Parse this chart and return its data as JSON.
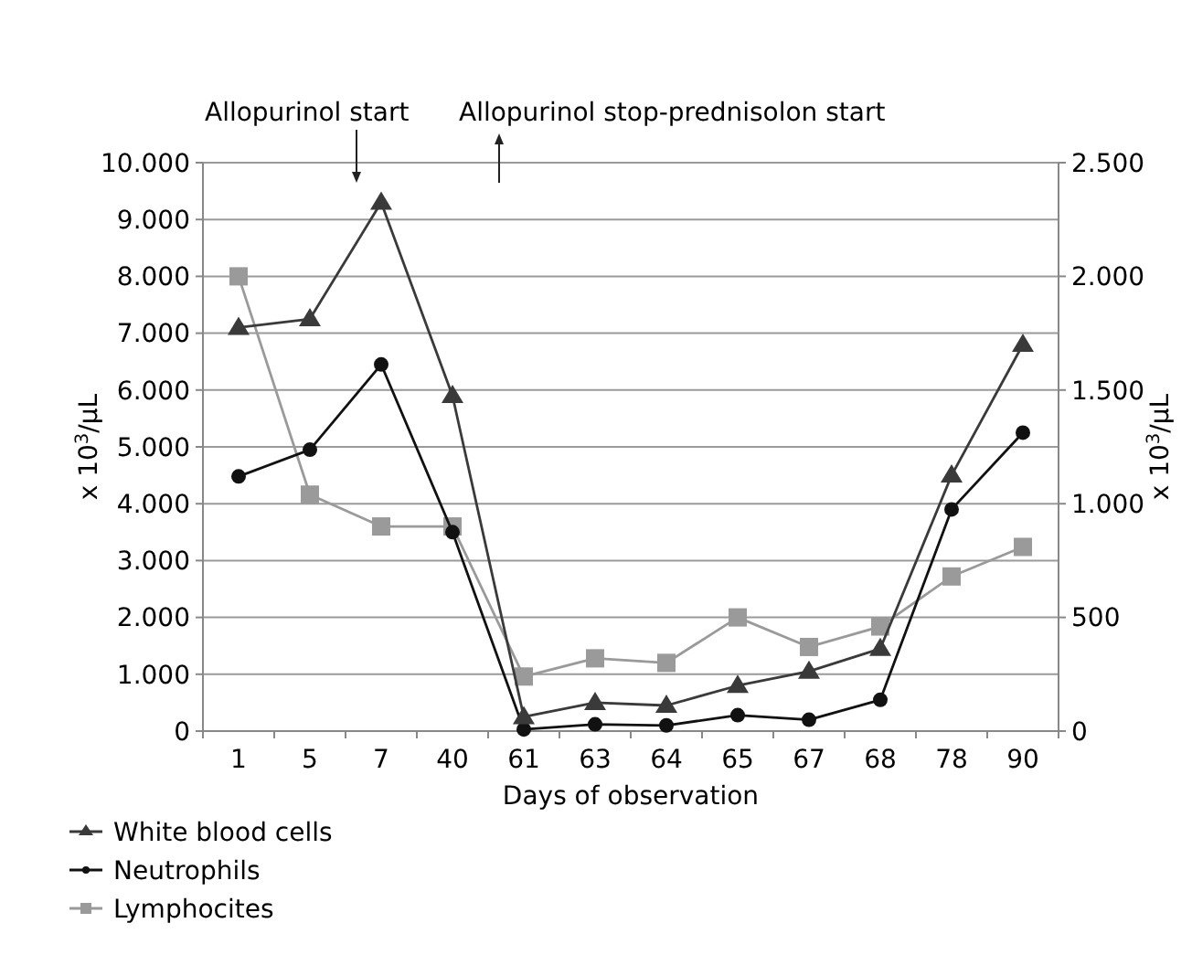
{
  "chart_data": {
    "type": "line",
    "xlabel": "Days of observation",
    "ylabel": "x 10$^{3}$/µL",
    "y2label": "x 10$^{3}$/µL",
    "categories": [
      "1",
      "5",
      "7",
      "40",
      "61",
      "63",
      "64",
      "65",
      "67",
      "68",
      "78",
      "90"
    ],
    "series": [
      {
        "name": "White blood cells",
        "color": "#3a3a3a",
        "marker": "triangle",
        "values": [
          7100,
          7250,
          9300,
          5900,
          250,
          500,
          450,
          800,
          1050,
          1450,
          4500,
          6800
        ]
      },
      {
        "name": "Neutrophils",
        "color": "#111111",
        "marker": "circle",
        "values": [
          4480,
          4950,
          6450,
          3500,
          30,
          120,
          100,
          280,
          200,
          550,
          3900,
          5250
        ]
      },
      {
        "name": "Lymphocites",
        "color": "#9a9a9a",
        "marker": "square",
        "axis": "y2",
        "values": [
          2000,
          1040,
          900,
          900,
          240,
          320,
          300,
          500,
          370,
          460,
          680,
          810
        ]
      }
    ],
    "ylim": [
      0,
      10000
    ],
    "yticks": [
      0,
      {
        "value": 1000,
        "label": "1.000"
      },
      {
        "value": 2000,
        "label": "2.000"
      },
      {
        "value": 3000,
        "label": "3.000"
      },
      {
        "value": 4000,
        "label": "4.000"
      },
      {
        "value": 5000,
        "label": "5.000"
      },
      {
        "value": 6000,
        "label": "6.000"
      },
      {
        "value": 7000,
        "label": "7.000"
      },
      {
        "value": 8000,
        "label": "8.000"
      },
      {
        "value": 9000,
        "label": "9.000"
      },
      {
        "value": 10000,
        "label": "10.000"
      }
    ],
    "y2lim": [
      0,
      2500
    ],
    "y2ticks": [
      0,
      500,
      {
        "value": 1000,
        "label": "1.000"
      },
      {
        "value": 1500,
        "label": "1.500"
      },
      {
        "value": 2000,
        "label": "2.000"
      },
      {
        "value": 2500,
        "label": "2.500"
      }
    ],
    "grid": "y",
    "legend": "bottom left",
    "line_style": "solid",
    "annotations": [
      "Allopurinol start",
      "Allopurinol stop-prednisolon start"
    ]
  }
}
